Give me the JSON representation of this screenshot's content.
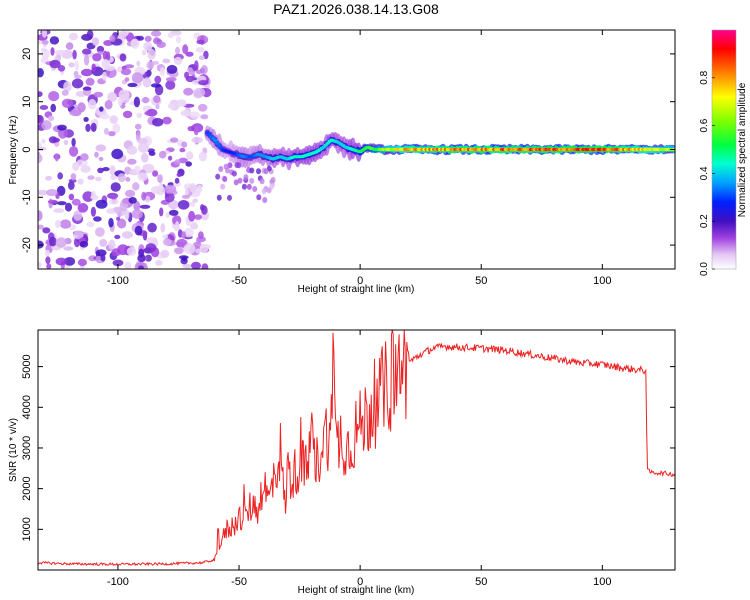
{
  "figure_title": "PAZ1.2026.038.14.13.G08",
  "colors": {
    "snr_line": "#ee2222",
    "axis": "#000000"
  },
  "chart_data": [
    {
      "type": "heatmap",
      "name": "spectrogram",
      "title": "",
      "xlabel": "Height of straight line (km)",
      "ylabel": "Frequency (Hz)",
      "xlim": [
        -133,
        130
      ],
      "ylim": [
        -25,
        25
      ],
      "xticks": [
        -100,
        -50,
        0,
        50,
        100
      ],
      "yticks": [
        -20,
        -10,
        0,
        10,
        20
      ],
      "xtick_labels": [
        "-100",
        "-50",
        "0",
        "50",
        "100"
      ],
      "ytick_labels": [
        "-20",
        "-10",
        "0",
        "10",
        "20"
      ],
      "noise_region_x": [
        -133,
        -63
      ],
      "ridge": {
        "description_free": true,
        "x": [
          -63,
          -60,
          -57,
          -54,
          -51,
          -48,
          -45,
          -42,
          -39,
          -36,
          -33,
          -30,
          -27,
          -24,
          -21,
          -18,
          -15,
          -12,
          -9,
          -6,
          -3,
          0,
          3,
          6,
          10,
          20,
          40,
          60,
          80,
          100,
          130
        ],
        "freq": [
          3.5,
          2,
          0,
          -0.5,
          -1,
          -1.5,
          -1.5,
          -1,
          -1.5,
          -2,
          -1.5,
          -2,
          -1.5,
          -1.5,
          -1,
          -0.5,
          0.5,
          2,
          1.5,
          0.5,
          0,
          -0.5,
          0.5,
          0,
          0,
          0,
          0,
          0,
          0,
          0,
          0
        ],
        "amplitude": [
          0.3,
          0.35,
          0.3,
          0.25,
          0.3,
          0.35,
          0.3,
          0.35,
          0.35,
          0.4,
          0.4,
          0.4,
          0.45,
          0.45,
          0.45,
          0.45,
          0.4,
          0.45,
          0.4,
          0.4,
          0.45,
          0.5,
          0.55,
          0.6,
          0.7,
          0.85,
          0.9,
          0.9,
          0.92,
          0.95,
          0.7
        ]
      },
      "colorbar": {
        "label": "Normalized spectral amplitude",
        "ticks": [
          0.0,
          0.2,
          0.4,
          0.6,
          0.8
        ],
        "tick_labels": [
          "0.0",
          "0.2",
          "0.4",
          "0.6",
          "0.8"
        ],
        "range": [
          0,
          1
        ]
      }
    },
    {
      "type": "line",
      "name": "snr",
      "title": "",
      "xlabel": "Height of straight line (km)",
      "ylabel": "SNR (10 * v/v)",
      "xlim": [
        -133,
        130
      ],
      "ylim": [
        0,
        5900
      ],
      "xticks": [
        -100,
        -50,
        0,
        50,
        100
      ],
      "yticks": [
        1000,
        2000,
        3000,
        4000,
        5000
      ],
      "xtick_labels": [
        "-100",
        "-50",
        "0",
        "50",
        "100"
      ],
      "ytick_labels": [
        "1000",
        "2000",
        "3000",
        "4000",
        "5000"
      ],
      "series": [
        {
          "name": "SNR",
          "color": "#ee2222",
          "x": [
            -133,
            -120,
            -100,
            -80,
            -65,
            -60,
            -58,
            -55,
            -52,
            -50,
            -48,
            -45,
            -42,
            -40,
            -38,
            -35,
            -33,
            -31,
            -30,
            -28,
            -25,
            -22,
            -20,
            -18,
            -15,
            -12,
            -11,
            -10,
            -8,
            -5,
            -2,
            0,
            5,
            10,
            15,
            20,
            25,
            30,
            35,
            40,
            50,
            60,
            70,
            80,
            90,
            100,
            110,
            118,
            118.5,
            120,
            125,
            130
          ],
          "y": [
            180,
            150,
            140,
            150,
            180,
            250,
            600,
            1000,
            1100,
            1300,
            1200,
            1600,
            1500,
            2200,
            1700,
            2300,
            3000,
            1500,
            2500,
            2200,
            2700,
            2400,
            3100,
            2600,
            3300,
            3400,
            5000,
            3000,
            3300,
            3000,
            3400,
            3500,
            4000,
            4400,
            4800,
            5100,
            5300,
            5450,
            5500,
            5480,
            5450,
            5400,
            5300,
            5200,
            5100,
            5050,
            4950,
            4900,
            2450,
            2400,
            2380,
            2350
          ]
        }
      ]
    }
  ]
}
